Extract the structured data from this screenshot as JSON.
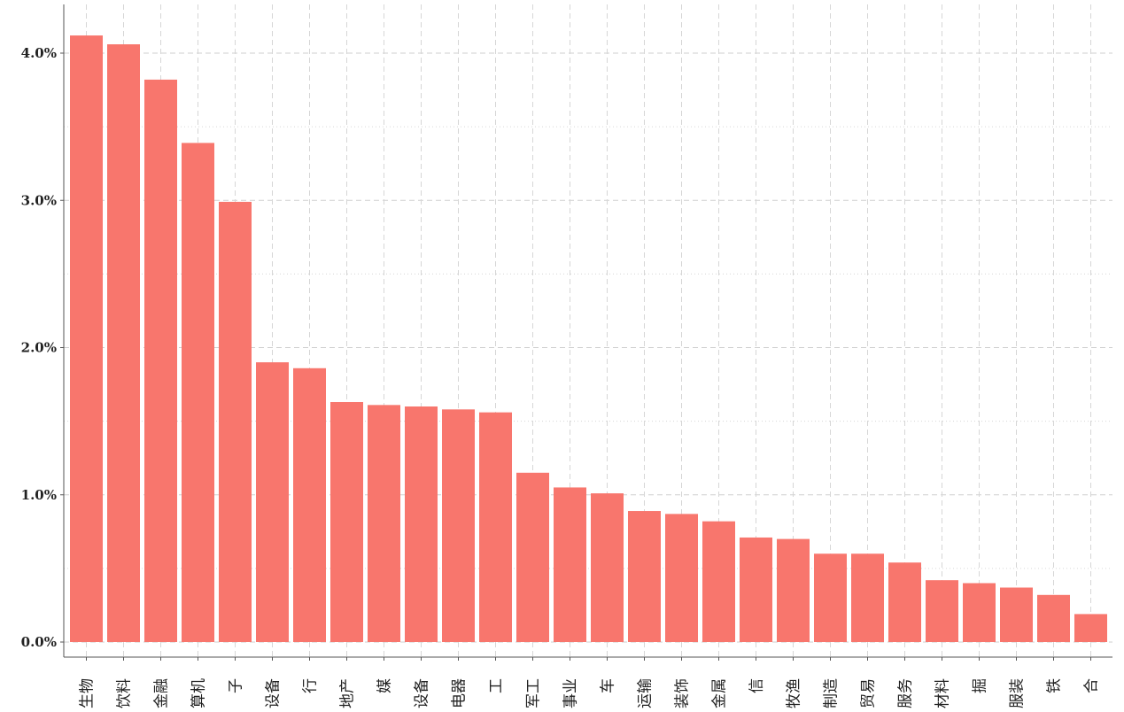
{
  "chart_data": {
    "type": "bar",
    "title": "",
    "xlabel": "",
    "ylabel": "",
    "ylim": [
      0,
      0.0428
    ],
    "yticks": [
      0.0,
      0.01,
      0.02,
      0.03,
      0.04
    ],
    "ytick_labels": [
      "0.0%",
      "1.0%",
      "2.0%",
      "3.0%",
      "4.0%"
    ],
    "grid": true,
    "legend": "none",
    "bar_color": "#F8766D",
    "categories": [
      "医药生物",
      "食品饮料",
      "非银金融",
      "计算机",
      "电子",
      "机械设备",
      "银行",
      "房地产",
      "传媒",
      "通信设备",
      "家用电器",
      "化工",
      "国防军工",
      "公用事业",
      "汽车",
      "交通运输",
      "建筑装饰",
      "有色金属",
      "通信",
      "农林牧渔",
      "轻工制造",
      "商业贸易",
      "休闲服务",
      "建筑材料",
      "采掘",
      "纺织服装",
      "钢铁",
      "综合"
    ],
    "visible_labels": [
      "生物",
      "饮料",
      "金融",
      "算机",
      "子",
      "设备",
      "行",
      "地产",
      "媒",
      "设备",
      "电器",
      "工",
      "军工",
      "事业",
      "车",
      "运输",
      "装饰",
      "金属",
      "信",
      "牧渔",
      "制造",
      "贸易",
      "服务",
      "材料",
      "掘",
      "服装",
      "铁",
      "合"
    ],
    "values": [
      0.0412,
      0.0406,
      0.0382,
      0.0339,
      0.0299,
      0.019,
      0.0186,
      0.0163,
      0.0161,
      0.016,
      0.0158,
      0.0156,
      0.0115,
      0.0105,
      0.0101,
      0.0089,
      0.0087,
      0.0082,
      0.0071,
      0.007,
      0.006,
      0.006,
      0.0054,
      0.0042,
      0.004,
      0.0037,
      0.0032,
      0.0019
    ]
  }
}
